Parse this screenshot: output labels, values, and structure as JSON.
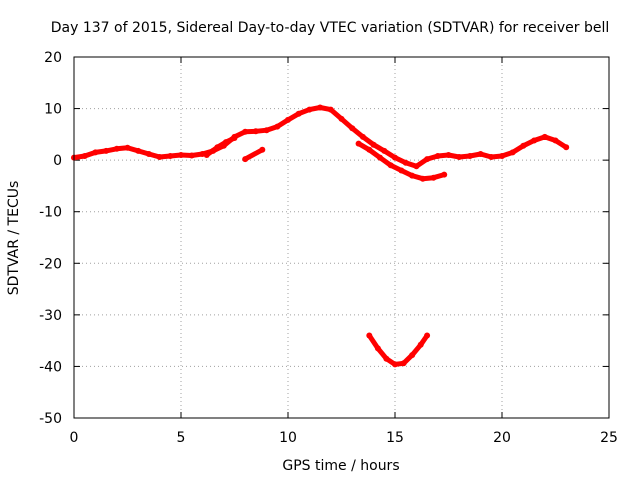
{
  "chart_data": {
    "type": "scatter",
    "title": "Day 137 of 2015, Sidereal Day-to-day VTEC variation (SDTVAR) for receiver bell",
    "xlabel": "GPS time / hours",
    "ylabel": "SDTVAR / TECUs",
    "xlim": [
      0,
      25
    ],
    "ylim": [
      -50,
      20
    ],
    "xticks": [
      0,
      5,
      10,
      15,
      20,
      25
    ],
    "yticks": [
      -50,
      -40,
      -30,
      -20,
      -10,
      0,
      10,
      20
    ],
    "grid": true,
    "series_color": "#ff0000",
    "series": [
      {
        "name": "main-trace",
        "points": [
          [
            0.0,
            0.5
          ],
          [
            0.5,
            0.8
          ],
          [
            1.0,
            1.5
          ],
          [
            1.5,
            1.8
          ],
          [
            2.0,
            2.2
          ],
          [
            2.5,
            2.4
          ],
          [
            3.0,
            1.8
          ],
          [
            3.5,
            1.2
          ],
          [
            4.0,
            0.6
          ],
          [
            4.5,
            0.8
          ],
          [
            5.0,
            1.0
          ],
          [
            5.5,
            0.9
          ],
          [
            6.0,
            1.2
          ],
          [
            6.5,
            1.8
          ],
          [
            7.0,
            2.8
          ],
          [
            7.5,
            4.5
          ],
          [
            8.0,
            5.5
          ],
          [
            8.5,
            5.6
          ],
          [
            9.0,
            5.8
          ],
          [
            9.5,
            6.5
          ],
          [
            10.0,
            7.8
          ],
          [
            10.5,
            9.0
          ],
          [
            11.0,
            9.8
          ],
          [
            11.5,
            10.2
          ],
          [
            12.0,
            9.8
          ],
          [
            12.5,
            8.0
          ],
          [
            13.0,
            6.2
          ],
          [
            13.5,
            4.5
          ],
          [
            14.0,
            3.0
          ],
          [
            14.5,
            1.8
          ],
          [
            15.0,
            0.5
          ],
          [
            15.5,
            -0.5
          ],
          [
            16.0,
            -1.2
          ],
          [
            16.5,
            0.2
          ],
          [
            17.0,
            0.8
          ],
          [
            17.5,
            1.0
          ],
          [
            18.0,
            0.6
          ],
          [
            18.5,
            0.8
          ],
          [
            19.0,
            1.2
          ],
          [
            19.5,
            0.6
          ],
          [
            20.0,
            0.8
          ],
          [
            20.5,
            1.5
          ],
          [
            21.0,
            2.8
          ],
          [
            21.5,
            3.8
          ],
          [
            22.0,
            4.5
          ],
          [
            22.5,
            3.8
          ],
          [
            23.0,
            2.5
          ]
        ]
      },
      {
        "name": "lower-branch",
        "points": [
          [
            13.3,
            3.2
          ],
          [
            13.8,
            2.0
          ],
          [
            14.3,
            0.5
          ],
          [
            14.8,
            -1.0
          ],
          [
            15.3,
            -2.0
          ],
          [
            15.8,
            -3.0
          ],
          [
            16.3,
            -3.6
          ],
          [
            16.8,
            -3.4
          ],
          [
            17.3,
            -2.8
          ]
        ]
      },
      {
        "name": "side-branch",
        "points": [
          [
            6.2,
            1.0
          ],
          [
            6.7,
            2.5
          ],
          [
            7.1,
            3.5
          ],
          [
            7.5,
            4.3
          ]
        ]
      },
      {
        "name": "short-segment",
        "points": [
          [
            8.0,
            0.2
          ],
          [
            8.8,
            2.0
          ]
        ]
      },
      {
        "name": "u-shape",
        "points": [
          [
            13.8,
            -34.0
          ],
          [
            14.2,
            -36.5
          ],
          [
            14.6,
            -38.5
          ],
          [
            15.0,
            -39.6
          ],
          [
            15.4,
            -39.4
          ],
          [
            15.8,
            -37.8
          ],
          [
            16.2,
            -35.8
          ],
          [
            16.5,
            -34.0
          ]
        ]
      }
    ]
  }
}
